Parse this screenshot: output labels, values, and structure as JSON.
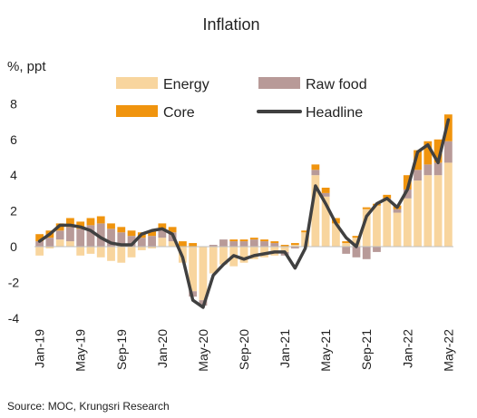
{
  "chart_data": {
    "type": "bar",
    "title": "Inflation",
    "ylabel": "%, ppt",
    "ylim": [
      -4,
      8
    ],
    "yticks": [
      -4,
      -2,
      0,
      2,
      4,
      6,
      8
    ],
    "grid": false,
    "legend_position": "top",
    "x": [
      "Jan-19",
      "Feb-19",
      "Mar-19",
      "Apr-19",
      "May-19",
      "Jun-19",
      "Jul-19",
      "Aug-19",
      "Sep-19",
      "Oct-19",
      "Nov-19",
      "Dec-19",
      "Jan-20",
      "Feb-20",
      "Mar-20",
      "Apr-20",
      "May-20",
      "Jun-20",
      "Jul-20",
      "Aug-20",
      "Sep-20",
      "Oct-20",
      "Nov-20",
      "Dec-20",
      "Jan-21",
      "Feb-21",
      "Mar-21",
      "Apr-21",
      "May-21",
      "Jun-21",
      "Jul-21",
      "Aug-21",
      "Sep-21",
      "Oct-21",
      "Nov-21",
      "Dec-21",
      "Jan-22",
      "Feb-22",
      "Mar-22",
      "Apr-22",
      "May-22"
    ],
    "xtick_labels": [
      "Jan-19",
      "May-19",
      "Sep-19",
      "Jan-20",
      "May-20",
      "Sep-20",
      "Jan-21",
      "May-21",
      "Sep-21",
      "Jan-22",
      "May-22"
    ],
    "series": [
      {
        "name": "Energy",
        "type": "stacked-bar",
        "color": "#f8d59e",
        "values": [
          -0.5,
          -0.1,
          0.4,
          0.3,
          -0.5,
          -0.4,
          -0.6,
          -0.8,
          -0.9,
          -0.6,
          -0.2,
          -0.1,
          0.5,
          0.3,
          -0.9,
          -2.5,
          -3.0,
          -1.5,
          -1.0,
          -1.1,
          -0.9,
          -0.7,
          -0.6,
          -0.5,
          -0.3,
          0.1,
          0.8,
          4.0,
          2.8,
          1.3,
          0.2,
          0.5,
          2.1,
          2.3,
          2.6,
          1.9,
          2.7,
          3.7,
          4.0,
          4.0,
          4.7
        ]
      },
      {
        "name": "Raw food",
        "type": "stacked-bar",
        "color": "#b89a98",
        "values": [
          0.3,
          0.5,
          0.5,
          0.8,
          1.0,
          1.2,
          1.3,
          1.0,
          0.8,
          0.6,
          0.5,
          0.6,
          0.5,
          0.5,
          0.0,
          -0.3,
          -0.3,
          0.1,
          0.4,
          0.3,
          0.3,
          0.4,
          0.3,
          0.2,
          -0.2,
          -0.1,
          0.0,
          0.3,
          0.2,
          0.0,
          -0.4,
          -0.6,
          -0.7,
          -0.3,
          0.1,
          0.2,
          0.5,
          0.6,
          0.6,
          0.7,
          1.2
        ]
      },
      {
        "name": "Core",
        "type": "stacked-bar",
        "color": "#f0940e",
        "values": [
          0.4,
          0.4,
          0.4,
          0.5,
          0.4,
          0.4,
          0.4,
          0.3,
          0.3,
          0.3,
          0.3,
          0.3,
          0.3,
          0.3,
          0.3,
          0.2,
          0.0,
          0.0,
          0.0,
          0.1,
          0.1,
          0.1,
          0.1,
          0.1,
          0.1,
          0.1,
          0.1,
          0.3,
          0.3,
          0.3,
          0.1,
          0.1,
          0.1,
          0.1,
          0.2,
          0.2,
          0.8,
          1.1,
          1.3,
          1.3,
          1.5
        ]
      },
      {
        "name": "Headline",
        "type": "line",
        "color": "#404040",
        "values": [
          0.3,
          0.7,
          1.2,
          1.2,
          1.1,
          0.9,
          0.5,
          0.2,
          0.1,
          0.1,
          0.7,
          0.9,
          1.0,
          0.7,
          -0.6,
          -3.0,
          -3.4,
          -1.6,
          -1.0,
          -0.5,
          -0.7,
          -0.5,
          -0.4,
          -0.3,
          -0.3,
          -1.2,
          -0.1,
          3.4,
          2.4,
          1.3,
          0.5,
          0.0,
          1.7,
          2.4,
          2.7,
          2.2,
          3.2,
          5.3,
          5.7,
          4.7,
          7.1
        ]
      }
    ],
    "legend": [
      {
        "name": "Energy",
        "swatch": "bar",
        "color": "#f8d59e"
      },
      {
        "name": "Raw food",
        "swatch": "bar",
        "color": "#b89a98"
      },
      {
        "name": "Core",
        "swatch": "bar",
        "color": "#f0940e"
      },
      {
        "name": "Headline",
        "swatch": "line",
        "color": "#404040"
      }
    ]
  },
  "source": "Source:  MOC, Krungsri Research"
}
